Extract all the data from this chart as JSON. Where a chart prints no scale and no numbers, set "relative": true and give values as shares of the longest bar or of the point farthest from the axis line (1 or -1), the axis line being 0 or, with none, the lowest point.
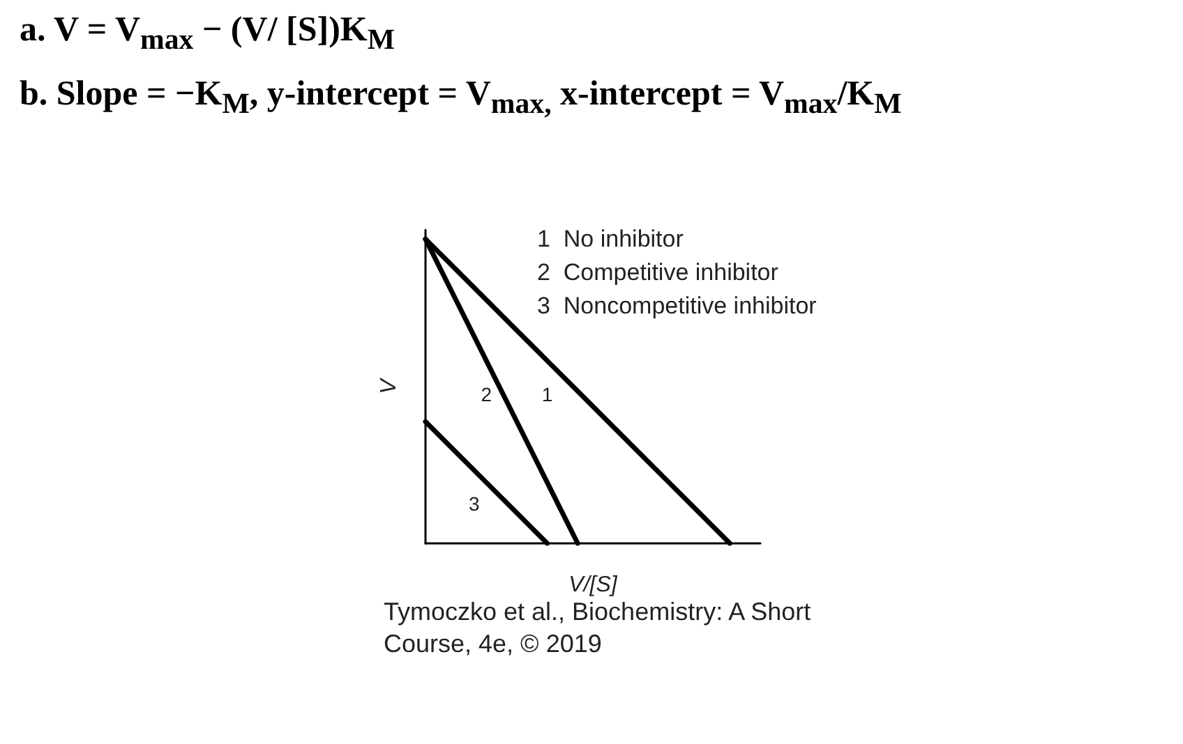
{
  "chart_data": {
    "type": "line",
    "relative": true,
    "xlabel": "V/[S]",
    "ylabel": "V",
    "legend": false,
    "marker": "none",
    "line_style": "solid",
    "grid": false,
    "categories": [
      null,
      null,
      null,
      null,
      null,
      null,
      null,
      null,
      null,
      null,
      null,
      null
    ],
    "series": [
      {
        "name": "1",
        "color": "#000000",
        "values": [
          1,
          0.9,
          0.8,
          0.7,
          0.6,
          0.5,
          0.4,
          0.3,
          0.2,
          0.1,
          0,
          null
        ]
      },
      {
        "name": "2",
        "color": "#000000",
        "values": [
          1,
          0.8,
          0.6,
          0.4,
          0.2,
          0,
          null,
          null,
          null,
          null,
          null,
          null
        ]
      },
      {
        "name": "3",
        "color": "#000000",
        "values": [
          0.4,
          0.3,
          0.2,
          0.1,
          0,
          null,
          null,
          null,
          null,
          null,
          null,
          null
        ]
      }
    ],
    "annotations": [
      "a. V = V$_{max}$ − (V/ [S])K$_{M}$",
      "b. Slope = −K$_{M}$, y-intercept = V$_{max,}$ x-intercept = V$_{max}$/K$_{M}$",
      "1  No inhibitor",
      "2  Competitive inhibitor",
      "3  Noncompetitive inhibitor",
      "Tymoczko et al., Biochemistry: A Short Course, 4e, © 2019"
    ]
  }
}
